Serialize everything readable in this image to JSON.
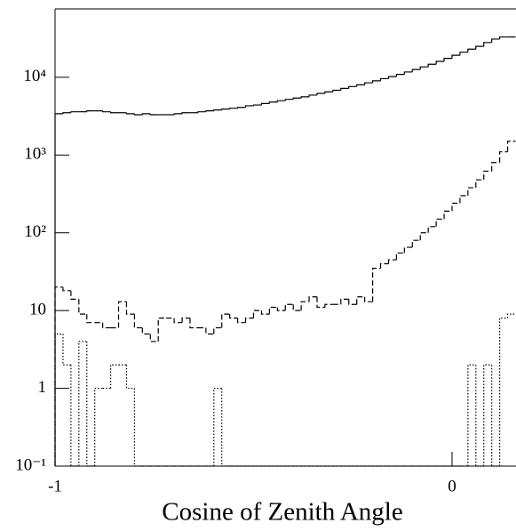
{
  "chart_data": {
    "type": "histogram",
    "xlabel": "Cosine of Zenith Angle",
    "bins": [
      -1,
      -0.98,
      -0.96,
      -0.94,
      -0.92,
      -0.9,
      -0.88,
      -0.86,
      -0.84,
      -0.82,
      -0.8,
      -0.78,
      -0.76,
      -0.74,
      -0.72,
      -0.7,
      -0.68,
      -0.66,
      -0.64,
      -0.62,
      -0.6,
      -0.58,
      -0.56,
      -0.54,
      -0.52,
      -0.5,
      -0.48,
      -0.46,
      -0.44,
      -0.42,
      -0.4,
      -0.38,
      -0.36,
      -0.34,
      -0.32,
      -0.3,
      -0.28,
      -0.26,
      -0.24,
      -0.22,
      -0.2,
      -0.18,
      -0.16,
      -0.14,
      -0.12,
      -0.1,
      -0.08,
      -0.06,
      -0.04,
      -0.02,
      0,
      0.02,
      0.04,
      0.06,
      0.08,
      0.1,
      0.12,
      0.14,
      0.16
    ],
    "series": [
      {
        "color": "#000000",
        "line_style": "solid",
        "values": [
          3400,
          3500,
          3600,
          3600,
          3700,
          3700,
          3600,
          3500,
          3500,
          3400,
          3300,
          3400,
          3300,
          3300,
          3300,
          3400,
          3500,
          3500,
          3600,
          3700,
          3800,
          3900,
          4000,
          4100,
          4300,
          4400,
          4600,
          4800,
          5000,
          5200,
          5400,
          5600,
          5900,
          6200,
          6500,
          6800,
          7200,
          7600,
          8000,
          8500,
          9000,
          9600,
          10200,
          10900,
          11700,
          12600,
          13600,
          14700,
          16000,
          17500,
          19200,
          21000,
          23000,
          25000,
          28000,
          31000,
          33000,
          33000
        ]
      },
      {
        "color": "#000000",
        "line_style": "dashed",
        "values": [
          20,
          18,
          14,
          9,
          7,
          7,
          6,
          6,
          13,
          9,
          6,
          5,
          4,
          8,
          8,
          7,
          8,
          6,
          6,
          5,
          6,
          9,
          8,
          7,
          8,
          10,
          9,
          11,
          10,
          12,
          10,
          13,
          15,
          11,
          12,
          12,
          14,
          12,
          15,
          13,
          35,
          40,
          45,
          55,
          65,
          80,
          100,
          120,
          150,
          190,
          240,
          300,
          380,
          480,
          620,
          800,
          1100,
          1500
        ]
      },
      {
        "color": "#000000",
        "line_style": "dotted",
        "values": [
          5,
          2,
          0,
          4,
          0,
          1,
          1,
          2,
          2,
          1,
          0,
          0,
          0,
          0,
          0,
          0,
          0,
          0,
          0,
          0,
          1,
          0,
          0,
          0,
          0,
          0,
          0,
          0,
          0,
          0,
          0,
          0,
          0,
          0,
          0,
          0,
          0,
          0,
          0,
          0,
          0,
          0,
          0,
          0,
          0,
          0,
          0,
          0,
          0,
          0,
          0,
          0,
          2,
          0,
          2,
          0,
          8,
          9
        ]
      }
    ],
    "xlim": [
      -1,
      0.16
    ],
    "xticks": [
      -1,
      0
    ],
    "ylim": [
      0.1,
      70000
    ],
    "log_y": true,
    "yticks": [
      {
        "value": 0.1,
        "label": "10⁻¹"
      },
      1,
      10,
      {
        "value": 100,
        "label": "10²"
      },
      {
        "value": 1000,
        "label": "10³"
      },
      {
        "value": 10000,
        "label": "10⁴"
      }
    ]
  }
}
